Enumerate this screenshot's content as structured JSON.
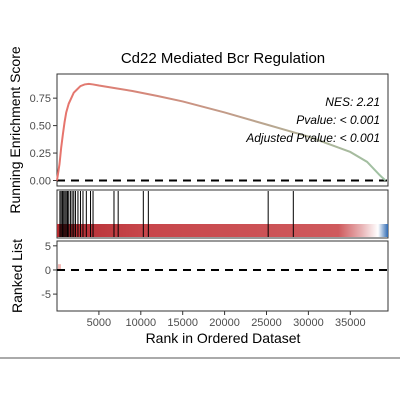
{
  "chart_data": {
    "type": "line",
    "title": "Cd22 Mediated Bcr Regulation",
    "xlabel": "Rank in Ordered Dataset",
    "xlim": [
      0,
      39500
    ],
    "x_ticks": [
      5000,
      10000,
      15000,
      20000,
      25000,
      30000,
      35000
    ],
    "x_tick_labels": [
      "5000",
      "10000",
      "15000",
      "20000",
      "25000",
      "30000",
      "35000"
    ],
    "enrichment_panel": {
      "ylabel": "Running Enrichment Score",
      "ylim": [
        -0.05,
        0.97
      ],
      "y_ticks": [
        0.0,
        0.25,
        0.5,
        0.75
      ],
      "y_tick_labels": [
        "0.00",
        "0.25",
        "0.50",
        "0.75"
      ],
      "reference_line": 0,
      "line_color_start": "#e8736c",
      "line_color_end": "#9fc3a4",
      "curve": {
        "x": [
          0,
          300,
          500,
          700,
          900,
          1100,
          1400,
          1700,
          2000,
          2400,
          2800,
          3300,
          3800,
          4300,
          5000,
          7000,
          9000,
          12000,
          15000,
          20000,
          25000,
          30000,
          35000,
          37000,
          38500,
          39200
        ],
        "y": [
          0.0,
          0.15,
          0.3,
          0.42,
          0.53,
          0.62,
          0.7,
          0.75,
          0.8,
          0.83,
          0.86,
          0.875,
          0.88,
          0.875,
          0.865,
          0.84,
          0.815,
          0.77,
          0.72,
          0.62,
          0.51,
          0.4,
          0.26,
          0.17,
          0.05,
          0.0
        ]
      },
      "stats": {
        "nes": "NES: 2.21",
        "pvalue": "Pvalue: < 0.001",
        "adjusted_pvalue": "Adjusted Pvalue: < 0.001"
      }
    },
    "hits_panel": {
      "hit_color": "#000000",
      "hit_positions": [
        350,
        500,
        650,
        800,
        950,
        1100,
        1250,
        1400,
        1600,
        1800,
        2000,
        2200,
        2500,
        2800,
        3100,
        3500,
        4000,
        4300,
        6800,
        7300,
        10300,
        10900,
        25200,
        28200
      ],
      "heat_colors": [
        "#b22a2f",
        "#c7454a",
        "#cf5a5d",
        "#e8b3b5",
        "#ffffff",
        "#2f6ab3"
      ],
      "heat_stops": [
        0,
        0.25,
        0.85,
        0.92,
        0.97,
        1.0
      ]
    },
    "ranked_panel": {
      "ylabel": "Ranked List",
      "ylim": [
        -8.5,
        6
      ],
      "y_ticks": [
        -5,
        0,
        5
      ],
      "y_tick_labels": [
        "-5",
        "0",
        "5"
      ],
      "reference_line": 0,
      "fill_color": "#e8736c"
    }
  }
}
